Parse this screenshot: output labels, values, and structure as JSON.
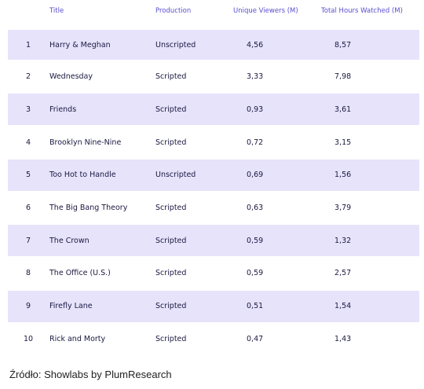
{
  "table": {
    "headers": {
      "title": "Title",
      "production": "Production",
      "viewers": "Unique Viewers (M)",
      "hours": "Total Hours Watched (M)"
    },
    "rows": [
      {
        "rank": "1",
        "title": "Harry & Meghan",
        "production": "Unscripted",
        "viewers": "4,56",
        "hours": "8,57"
      },
      {
        "rank": "2",
        "title": "Wednesday",
        "production": "Scripted",
        "viewers": "3,33",
        "hours": "7,98"
      },
      {
        "rank": "3",
        "title": "Friends",
        "production": "Scripted",
        "viewers": "0,93",
        "hours": "3,61"
      },
      {
        "rank": "4",
        "title": "Brooklyn Nine-Nine",
        "production": "Scripted",
        "viewers": "0,72",
        "hours": "3,15"
      },
      {
        "rank": "5",
        "title": "Too Hot to Handle",
        "production": "Unscripted",
        "viewers": "0,69",
        "hours": "1,56"
      },
      {
        "rank": "6",
        "title": "The Big Bang Theory",
        "production": "Scripted",
        "viewers": "0,63",
        "hours": "3,79"
      },
      {
        "rank": "7",
        "title": "The Crown",
        "production": "Scripted",
        "viewers": "0,59",
        "hours": "1,32"
      },
      {
        "rank": "8",
        "title": "The Office (U.S.)",
        "production": "Scripted",
        "viewers": "0,59",
        "hours": "2,57"
      },
      {
        "rank": "9",
        "title": "Firefly Lane",
        "production": "Scripted",
        "viewers": "0,51",
        "hours": "1,54"
      },
      {
        "rank": "10",
        "title": "Rick and Morty",
        "production": "Scripted",
        "viewers": "0,47",
        "hours": "1,43"
      }
    ]
  },
  "source": "Źródło: Showlabs by PlumResearch",
  "colors": {
    "header_text": "#5a4fcf",
    "row_shade": "#e6e3fb",
    "row_text": "#1a1840"
  }
}
